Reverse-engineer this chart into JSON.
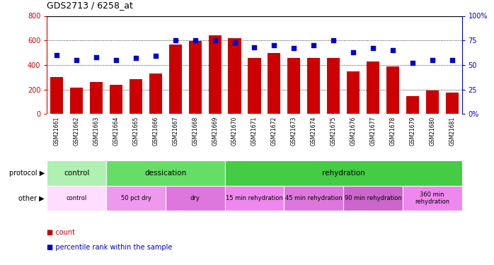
{
  "title": "GDS2713 / 6258_at",
  "samples": [
    "GSM21661",
    "GSM21662",
    "GSM21663",
    "GSM21664",
    "GSM21665",
    "GSM21666",
    "GSM21667",
    "GSM21668",
    "GSM21669",
    "GSM21670",
    "GSM21671",
    "GSM21672",
    "GSM21673",
    "GSM21674",
    "GSM21675",
    "GSM21676",
    "GSM21677",
    "GSM21678",
    "GSM21679",
    "GSM21680",
    "GSM21681"
  ],
  "counts": [
    300,
    215,
    263,
    240,
    283,
    330,
    565,
    595,
    640,
    620,
    455,
    500,
    455,
    455,
    455,
    345,
    430,
    390,
    148,
    190,
    172
  ],
  "percentiles": [
    60,
    55,
    58,
    55,
    57,
    59,
    75,
    75,
    75,
    73,
    68,
    70,
    67,
    70,
    75,
    63,
    67,
    65,
    52,
    55,
    55
  ],
  "bar_color": "#cc0000",
  "dot_color": "#0000cc",
  "ylim_left": [
    0,
    800
  ],
  "ylim_right": [
    0,
    100
  ],
  "yticks_left": [
    0,
    200,
    400,
    600,
    800
  ],
  "yticks_right": [
    0,
    25,
    50,
    75,
    100
  ],
  "protocol_row": {
    "label": "protocol",
    "groups": [
      {
        "text": "control",
        "start": 0,
        "end": 3,
        "color": "#b0f0b0"
      },
      {
        "text": "dessication",
        "start": 3,
        "end": 9,
        "color": "#66dd66"
      },
      {
        "text": "rehydration",
        "start": 9,
        "end": 21,
        "color": "#44cc44"
      }
    ]
  },
  "other_row": {
    "label": "other",
    "groups": [
      {
        "text": "control",
        "start": 0,
        "end": 3,
        "color": "#ffddff"
      },
      {
        "text": "50 pct dry",
        "start": 3,
        "end": 6,
        "color": "#ee99ee"
      },
      {
        "text": "dry",
        "start": 6,
        "end": 9,
        "color": "#dd77dd"
      },
      {
        "text": "15 min rehydration",
        "start": 9,
        "end": 12,
        "color": "#ee88ee"
      },
      {
        "text": "45 min rehydration",
        "start": 12,
        "end": 15,
        "color": "#dd77dd"
      },
      {
        "text": "90 min rehydration",
        "start": 15,
        "end": 18,
        "color": "#cc66cc"
      },
      {
        "text": "360 min\nrehydration",
        "start": 18,
        "end": 21,
        "color": "#ee88ee"
      }
    ]
  },
  "xtick_bg_color": "#d8d8d8",
  "left_axis_color": "#cc0000",
  "right_axis_color": "#0000cc",
  "legend_count_color": "#cc0000",
  "legend_pct_color": "#0000cc"
}
